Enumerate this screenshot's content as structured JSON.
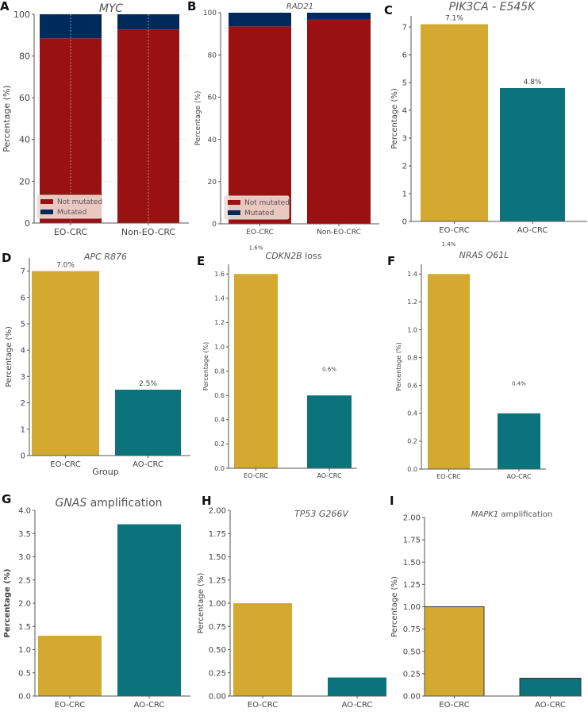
{
  "colors": {
    "eo": "#D4A92F",
    "ao": "#0B737B",
    "not_mutated": "#991111",
    "mutated": "#002A5C"
  },
  "chart_data": [
    {
      "panel": "A",
      "type": "stacked-bar",
      "title_italic": "MYC",
      "title_suffix": "",
      "ylabel": "Percentage (%)",
      "categories": [
        "EO-CRC",
        "Non-EO-CRC"
      ],
      "series": [
        {
          "name": "Not mutated",
          "values": [
            88.5,
            92.7
          ]
        },
        {
          "name": "Mutated",
          "values": [
            11.5,
            7.3
          ]
        }
      ],
      "ylim": [
        0,
        100
      ],
      "yticks": [
        0,
        20,
        40,
        60,
        80,
        100
      ],
      "ytick_labels": [
        "0",
        "20",
        "40",
        "60",
        "80",
        "100"
      ],
      "grid": true,
      "legend": "lower-left"
    },
    {
      "panel": "B",
      "type": "stacked-bar",
      "title_italic": "RAD21",
      "title_suffix": "",
      "ylabel": "Percentage (%)",
      "categories": [
        "EO-CRC",
        "Non-EO-CRC"
      ],
      "series": [
        {
          "name": "Not mutated",
          "values": [
            93.5,
            97.0
          ]
        },
        {
          "name": "Mutated",
          "values": [
            6.5,
            3.0
          ]
        }
      ],
      "ylim": [
        0,
        100
      ],
      "yticks": [
        0,
        20,
        40,
        60,
        80,
        100
      ],
      "ytick_labels": [
        "0",
        "20",
        "40",
        "60",
        "80",
        "100"
      ],
      "grid": false,
      "legend": "lower-left"
    },
    {
      "panel": "C",
      "type": "bar",
      "title_italic": "PIK3CA - E545K",
      "title_suffix": "",
      "ylabel": "Percentage (%)",
      "categories": [
        "EO-CRC",
        "AO-CRC"
      ],
      "values": [
        7.1,
        4.8
      ],
      "value_labels": [
        "7.1%",
        "4.8%"
      ],
      "ylim": [
        0,
        7.4
      ],
      "yticks": [
        0,
        1,
        2,
        3,
        4,
        5,
        6,
        7
      ],
      "ytick_labels": [
        "0",
        "1",
        "2",
        "3",
        "4",
        "5",
        "6",
        "7"
      ]
    },
    {
      "panel": "D",
      "type": "bar",
      "title_italic": "APC R876",
      "title_suffix": "",
      "ylabel": "Percentage (%)",
      "xlabel": "Group",
      "categories": [
        "EO-CRC",
        "AO-CRC"
      ],
      "values": [
        7.0,
        2.5
      ],
      "value_labels": [
        "7.0%",
        "2.5%"
      ],
      "ylim": [
        0,
        7.5
      ],
      "yticks": [
        0,
        1,
        2,
        3,
        4,
        5,
        6,
        7
      ],
      "ytick_labels": [
        "0",
        "1",
        "2",
        "3",
        "4",
        "5",
        "6",
        "7"
      ]
    },
    {
      "panel": "E",
      "type": "bar",
      "title_italic": "CDKN2B",
      "title_suffix": " loss",
      "ylabel": "Percentage (%)",
      "categories": [
        "EO-CRC",
        "AO-CRC"
      ],
      "values": [
        1.6,
        0.6
      ],
      "value_labels": [
        "1.6%",
        "0.6%"
      ],
      "ylim": [
        0,
        1.68
      ],
      "yticks": [
        0,
        0.2,
        0.4,
        0.6,
        0.8,
        1.0,
        1.2,
        1.4,
        1.6
      ],
      "ytick_labels": [
        "0.0",
        "0.2",
        "0.4",
        "0.6",
        "0.8",
        "1.0",
        "1.2",
        "1.4",
        "1.6"
      ]
    },
    {
      "panel": "F",
      "type": "bar",
      "title_italic": "NRAS Q61L",
      "title_suffix": "",
      "ylabel": "Percentage (%)",
      "categories": [
        "EO-CRC",
        "AO-CRC"
      ],
      "values": [
        1.4,
        0.4
      ],
      "value_labels": [
        "1.4%",
        "0.4%"
      ],
      "ylim": [
        0,
        1.47
      ],
      "yticks": [
        0,
        0.2,
        0.4,
        0.6,
        0.8,
        1.0,
        1.2,
        1.4
      ],
      "ytick_labels": [
        "0.0",
        "0.2",
        "0.4",
        "0.6",
        "0.8",
        "1.0",
        "1.2",
        "1.4"
      ]
    },
    {
      "panel": "G",
      "type": "bar",
      "title_italic": "GNAS",
      "title_suffix": " amplification",
      "ylabel": "Percentage (%)",
      "categories": [
        "EO-CRC",
        "AO-CRC"
      ],
      "values": [
        1.3,
        3.7
      ],
      "value_labels": [],
      "ylim": [
        0,
        4.0
      ],
      "yticks": [
        0,
        0.5,
        1.0,
        1.5,
        2.0,
        2.5,
        3.0,
        3.5,
        4.0
      ],
      "ytick_labels": [
        "0.0",
        "0.5",
        "1.0",
        "1.5",
        "2.0",
        "2.5",
        "3.0",
        "3.5",
        "4.0"
      ]
    },
    {
      "panel": "H",
      "type": "bar",
      "title_italic": "TP53 G266V",
      "title_suffix": "",
      "ylabel": "Percentage (%)",
      "categories": [
        "EO-CRC",
        "AO-CRC"
      ],
      "values": [
        1.0,
        0.2
      ],
      "value_labels": [],
      "ylim": [
        0,
        2.0
      ],
      "yticks": [
        0,
        0.25,
        0.5,
        0.75,
        1.0,
        1.25,
        1.5,
        1.75,
        2.0
      ],
      "ytick_labels": [
        "0.00",
        "0.25",
        "0.50",
        "0.75",
        "1.00",
        "1.25",
        "1.50",
        "1.75",
        "2.00"
      ]
    },
    {
      "panel": "I",
      "type": "bar",
      "title_italic": "MAPK1",
      "title_suffix": " amplification",
      "ylabel": "Percentage (%)",
      "categories": [
        "EO-CRC",
        "AO-CRC"
      ],
      "values": [
        1.0,
        0.2
      ],
      "value_labels": [],
      "ylim": [
        0,
        2.0
      ],
      "yticks": [
        0,
        0.25,
        0.5,
        0.75,
        1.0,
        1.25,
        1.5,
        1.75,
        2.0
      ],
      "ytick_labels": [
        "0.00",
        "0.25",
        "0.50",
        "0.75",
        "1.00",
        "1.25",
        "1.50",
        "1.75",
        "2.00"
      ]
    }
  ]
}
